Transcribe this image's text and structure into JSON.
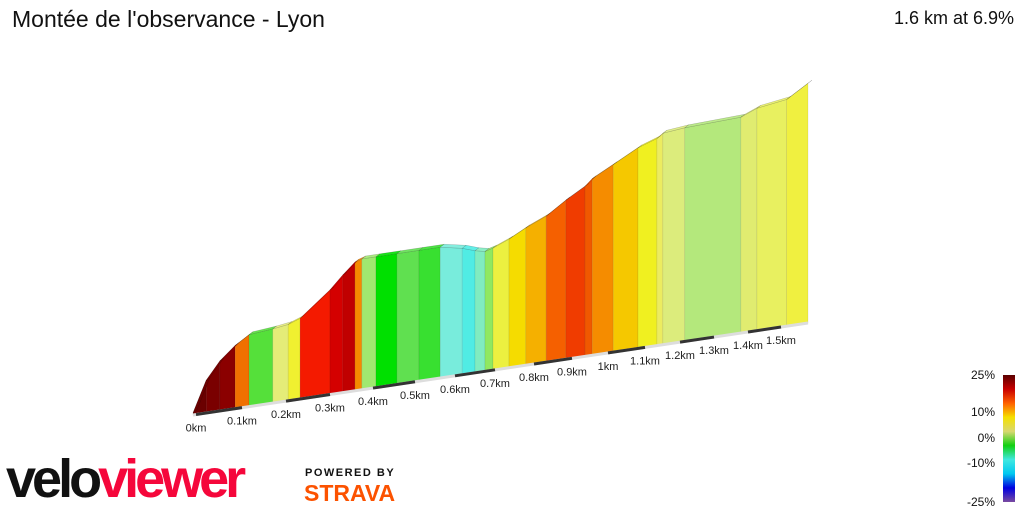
{
  "header": {
    "title": "Montée de l'observance - Lyon",
    "summary": "1.6 km at 6.9%"
  },
  "chart_data": {
    "type": "area",
    "subtype": "3d-elevation-profile-gradient-colored",
    "x_unit": "km",
    "y_unit": "m (relative rise, estimated)",
    "x_ticks": [
      "0km",
      "0.1km",
      "0.2km",
      "0.3km",
      "0.4km",
      "0.5km",
      "0.6km",
      "0.7km",
      "0.8km",
      "0.9km",
      "1km",
      "1.1km",
      "1.2km",
      "1.3km",
      "1.4km",
      "1.5km"
    ],
    "points": [
      {
        "km": 0,
        "rise": 1
      },
      {
        "km": 0.022,
        "rise": 15
      },
      {
        "km": 0.052,
        "rise": 23
      },
      {
        "km": 0.085,
        "rise": 29
      },
      {
        "km": 0.116,
        "rise": 33
      },
      {
        "km": 0.17,
        "rise": 34
      },
      {
        "km": 0.205,
        "rise": 35
      },
      {
        "km": 0.232,
        "rise": 37
      },
      {
        "km": 0.3,
        "rise": 48
      },
      {
        "km": 0.33,
        "rise": 54
      },
      {
        "km": 0.358,
        "rise": 59
      },
      {
        "km": 0.374,
        "rise": 60
      },
      {
        "km": 0.407,
        "rise": 60
      },
      {
        "km": 0.457,
        "rise": 60
      },
      {
        "km": 0.51,
        "rise": 60
      },
      {
        "km": 0.563,
        "rise": 60
      },
      {
        "km": 0.618,
        "rise": 58
      },
      {
        "km": 0.65,
        "rise": 56
      },
      {
        "km": 0.675,
        "rise": 55
      },
      {
        "km": 0.695,
        "rise": 56
      },
      {
        "km": 0.736,
        "rise": 59
      },
      {
        "km": 0.779,
        "rise": 63
      },
      {
        "km": 0.832,
        "rise": 67
      },
      {
        "km": 0.884,
        "rise": 73
      },
      {
        "km": 0.936,
        "rise": 78
      },
      {
        "km": 0.956,
        "rise": 81
      },
      {
        "km": 1.014,
        "rise": 86
      },
      {
        "km": 1.081,
        "rise": 92
      },
      {
        "km": 1.134,
        "rise": 95
      },
      {
        "km": 1.151,
        "rise": 97
      },
      {
        "km": 1.214,
        "rise": 98
      },
      {
        "km": 1.379,
        "rise": 99
      },
      {
        "km": 1.427,
        "rise": 102
      },
      {
        "km": 1.521,
        "rise": 104
      },
      {
        "km": 1.6,
        "rise": 110
      }
    ],
    "segment_colors": [
      "#6b0000",
      "#7a0000",
      "#8b0000",
      "#f07000",
      "#55e03a",
      "#e4ec78",
      "#f0f030",
      "#f41a00",
      "#d40000",
      "#c00000",
      "#f58a00",
      "#a0e870",
      "#00e000",
      "#60e050",
      "#38e030",
      "#78ecdc",
      "#50ece4",
      "#80ecc0",
      "#90e860",
      "#ecf040",
      "#f5dc00",
      "#f5b000",
      "#f56000",
      "#f03c00",
      "#f05800",
      "#f58c00",
      "#f5c800",
      "#f0f020",
      "#ecec60",
      "#dcec7c",
      "#b4e87c",
      "#e0ec70",
      "#e8f060",
      "#f0f040"
    ],
    "legend": {
      "labels": [
        "25%",
        "10%",
        "0%",
        "-10%",
        "-25%"
      ],
      "label_values": [
        25,
        10,
        0,
        -10,
        -25
      ],
      "stops": [
        "#5a0000",
        "#c80000",
        "#ff6000",
        "#f5e000",
        "#d8d870",
        "#10d010",
        "#40e8e0",
        "#00c8f0",
        "#0000e0",
        "#7a4aa0"
      ]
    }
  },
  "branding": {
    "velo": "velo",
    "viewer": "viewer",
    "powered_by": "POWERED BY",
    "strava": "STRAVA"
  }
}
